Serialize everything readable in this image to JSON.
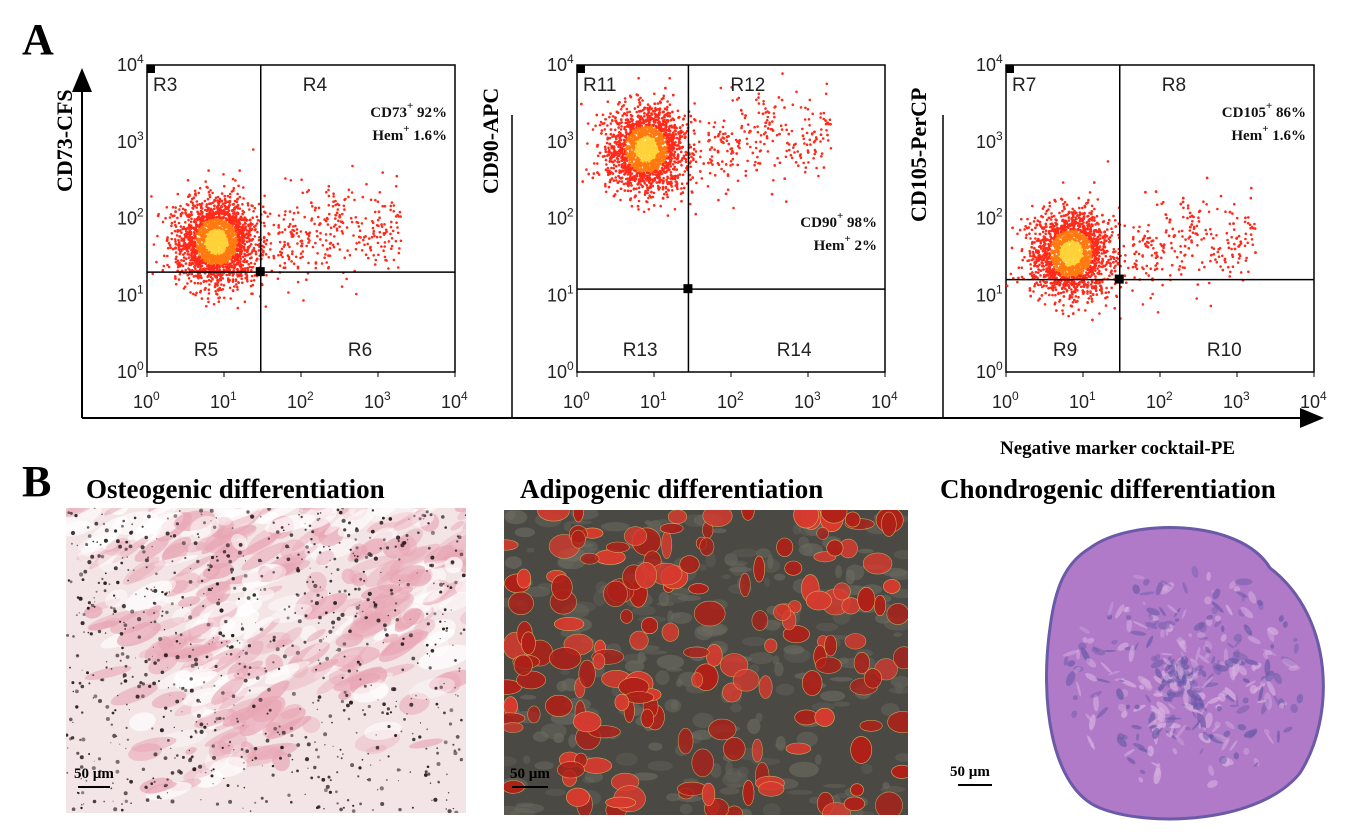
{
  "panel_a": {
    "letter": "A",
    "x_axis_label": "Negative marker cocktail-PE",
    "x_ticks": [
      "10",
      "10",
      "10",
      "10",
      "10"
    ],
    "x_tick_exponents": [
      "0",
      "1",
      "2",
      "3",
      "4"
    ],
    "y_ticks": [
      "10",
      "10",
      "10",
      "10",
      "10"
    ],
    "y_tick_exponents": [
      "0",
      "1",
      "2",
      "3",
      "4"
    ]
  },
  "chart_data": [
    {
      "type": "scatter",
      "title": "",
      "ylabel": "CD73-CFS",
      "xlabel": "Negative marker cocktail-PE",
      "xscale": "log",
      "yscale": "log",
      "xlim": [
        1,
        10000
      ],
      "ylim": [
        1,
        10000
      ],
      "gate_x": 30,
      "gate_y": 20,
      "cluster_center": [
        8,
        50
      ],
      "regions": [
        "R3",
        "R4",
        "R5",
        "R6"
      ],
      "stat_lines": [
        {
          "marker": "CD73",
          "sup": "+",
          "value": "92%"
        },
        {
          "marker": "Hem",
          "sup": "+",
          "value": "1.6%"
        }
      ],
      "positive_fraction_pct": 92,
      "hem_fraction_pct": 1.6
    },
    {
      "type": "scatter",
      "title": "",
      "ylabel": "CD90-APC",
      "xlabel": "Negative marker cocktail-PE",
      "xscale": "log",
      "yscale": "log",
      "xlim": [
        1,
        10000
      ],
      "ylim": [
        1,
        10000
      ],
      "gate_x": 28,
      "gate_y": 12,
      "cluster_center": [
        8,
        800
      ],
      "regions": [
        "R11",
        "R12",
        "R13",
        "R14"
      ],
      "stat_lines": [
        {
          "marker": "CD90",
          "sup": "+",
          "value": "98%"
        },
        {
          "marker": "Hem",
          "sup": "+",
          "value": "2%"
        }
      ],
      "positive_fraction_pct": 98,
      "hem_fraction_pct": 2
    },
    {
      "type": "scatter",
      "title": "",
      "ylabel": "CD105-PerCP",
      "xlabel": "Negative marker cocktail-PE",
      "xscale": "log",
      "yscale": "log",
      "xlim": [
        1,
        10000
      ],
      "ylim": [
        1,
        10000
      ],
      "gate_x": 30,
      "gate_y": 16,
      "cluster_center": [
        7,
        35
      ],
      "regions": [
        "R7",
        "R8",
        "R9",
        "R10"
      ],
      "stat_lines": [
        {
          "marker": "CD105",
          "sup": "+",
          "value": "86%"
        },
        {
          "marker": "Hem",
          "sup": "+",
          "value": "1.6%"
        }
      ],
      "positive_fraction_pct": 86,
      "hem_fraction_pct": 1.6
    }
  ],
  "panel_b": {
    "letter": "B",
    "images": [
      {
        "title": "Osteogenic differentiation",
        "scale_label": "50 µm",
        "stain_colors": [
          "#f0c7cf",
          "#e8a5b3",
          "#2a2020"
        ]
      },
      {
        "title": "Adipogenic differentiation",
        "scale_label": "50 µm",
        "stain_colors": [
          "#4a4a44",
          "#d83a2e",
          "#b02018"
        ]
      },
      {
        "title": "Chondrogenic differentiation",
        "scale_label": "50 µm",
        "stain_colors": [
          "#b07ac8",
          "#6a5aa8",
          "#d8b0e0"
        ]
      }
    ]
  },
  "colors": {
    "dot_outer": "#ff2a1a",
    "dot_mid": "#ff7a10",
    "dot_core": "#ffd23a",
    "axis": "#000000"
  }
}
